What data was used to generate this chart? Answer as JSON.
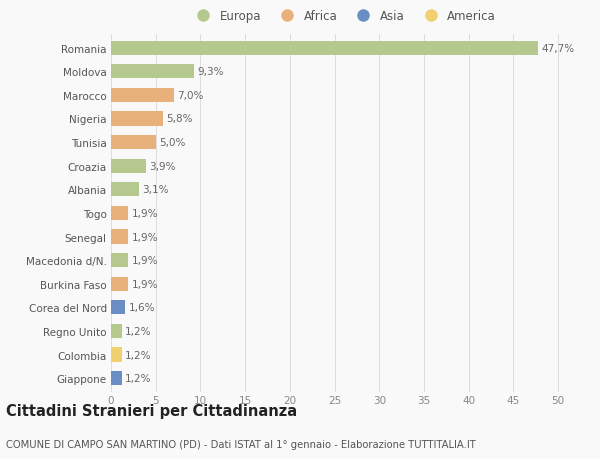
{
  "countries": [
    "Romania",
    "Moldova",
    "Marocco",
    "Nigeria",
    "Tunisia",
    "Croazia",
    "Albania",
    "Togo",
    "Senegal",
    "Macedonia d/N.",
    "Burkina Faso",
    "Corea del Nord",
    "Regno Unito",
    "Colombia",
    "Giappone"
  ],
  "values": [
    47.7,
    9.3,
    7.0,
    5.8,
    5.0,
    3.9,
    3.1,
    1.9,
    1.9,
    1.9,
    1.9,
    1.6,
    1.2,
    1.2,
    1.2
  ],
  "labels": [
    "47,7%",
    "9,3%",
    "7,0%",
    "5,8%",
    "5,0%",
    "3,9%",
    "3,1%",
    "1,9%",
    "1,9%",
    "1,9%",
    "1,9%",
    "1,6%",
    "1,2%",
    "1,2%",
    "1,2%"
  ],
  "continents": [
    "Europa",
    "Europa",
    "Africa",
    "Africa",
    "Africa",
    "Europa",
    "Europa",
    "Africa",
    "Africa",
    "Europa",
    "Africa",
    "Asia",
    "Europa",
    "America",
    "Asia"
  ],
  "continent_colors": {
    "Europa": "#b5c98e",
    "Africa": "#e8b07a",
    "Asia": "#6a8ec4",
    "America": "#f0d070"
  },
  "legend_items": [
    "Europa",
    "Africa",
    "Asia",
    "America"
  ],
  "legend_colors": [
    "#b5c98e",
    "#e8b07a",
    "#6a8ec4",
    "#f0d070"
  ],
  "title": "Cittadini Stranieri per Cittadinanza",
  "subtitle": "COMUNE DI CAMPO SAN MARTINO (PD) - Dati ISTAT al 1° gennaio - Elaborazione TUTTITALIA.IT",
  "xlim": [
    0,
    52
  ],
  "xticks": [
    0,
    5,
    10,
    15,
    20,
    25,
    30,
    35,
    40,
    45,
    50
  ],
  "background_color": "#f9f9f9",
  "grid_color": "#dddddd",
  "bar_height": 0.6,
  "label_fontsize": 7.5,
  "tick_fontsize": 7.5,
  "title_fontsize": 10.5,
  "subtitle_fontsize": 7.2
}
